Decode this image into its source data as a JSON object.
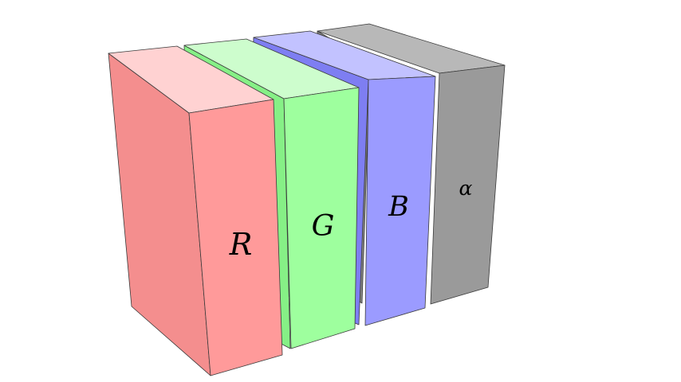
{
  "diagram": {
    "channels": [
      {
        "id": "alpha",
        "label": "α",
        "colors": {
          "front": "#9a9a9a",
          "side": "#808080",
          "top": "#b8b8b8"
        }
      },
      {
        "id": "blue",
        "label": "B",
        "colors": {
          "front": "#9b9bff",
          "side": "#7e7ef2",
          "top": "#c2c2ff"
        }
      },
      {
        "id": "green",
        "label": "G",
        "colors": {
          "front": "#9eff9e",
          "side": "#86f086",
          "top": "#cdfdcd"
        }
      },
      {
        "id": "red",
        "label": "R",
        "colors": {
          "front": "#ff9a9a",
          "side": "#f48e8e",
          "top": "#ffd2d2"
        }
      }
    ]
  }
}
